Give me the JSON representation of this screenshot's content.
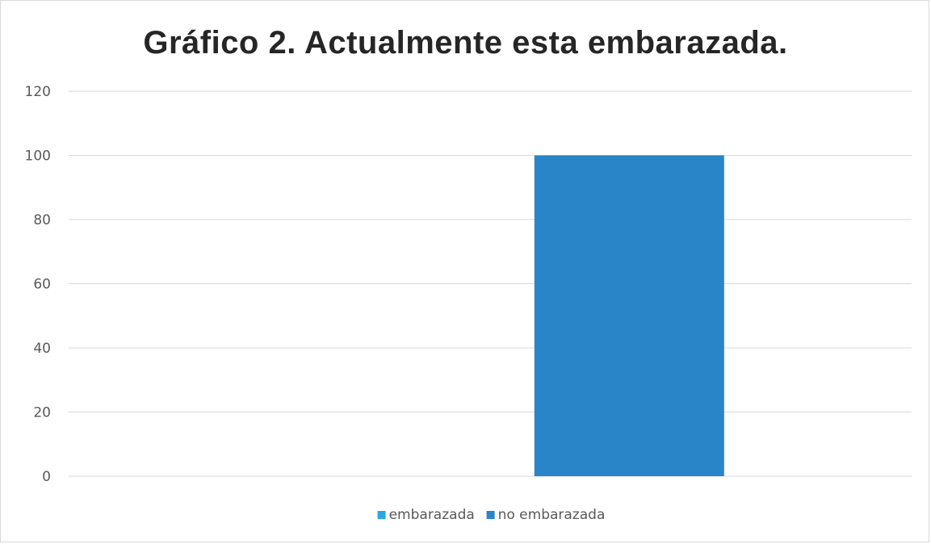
{
  "chart_data": {
    "type": "bar",
    "title": "Gráfico 2. Actualmente esta embarazada.",
    "xlabel": "",
    "ylabel": "",
    "ylim": [
      0,
      120
    ],
    "yticks": [
      "0",
      "20",
      "40",
      "60",
      "80",
      "100",
      "120"
    ],
    "grid": true,
    "legend_position": "bottom",
    "categories": [
      ""
    ],
    "series": [
      {
        "name": "embarazada",
        "values": [
          0
        ],
        "color": "#29a8e0"
      },
      {
        "name": "no embarazada",
        "values": [
          100
        ],
        "color": "#2984c8"
      }
    ]
  }
}
